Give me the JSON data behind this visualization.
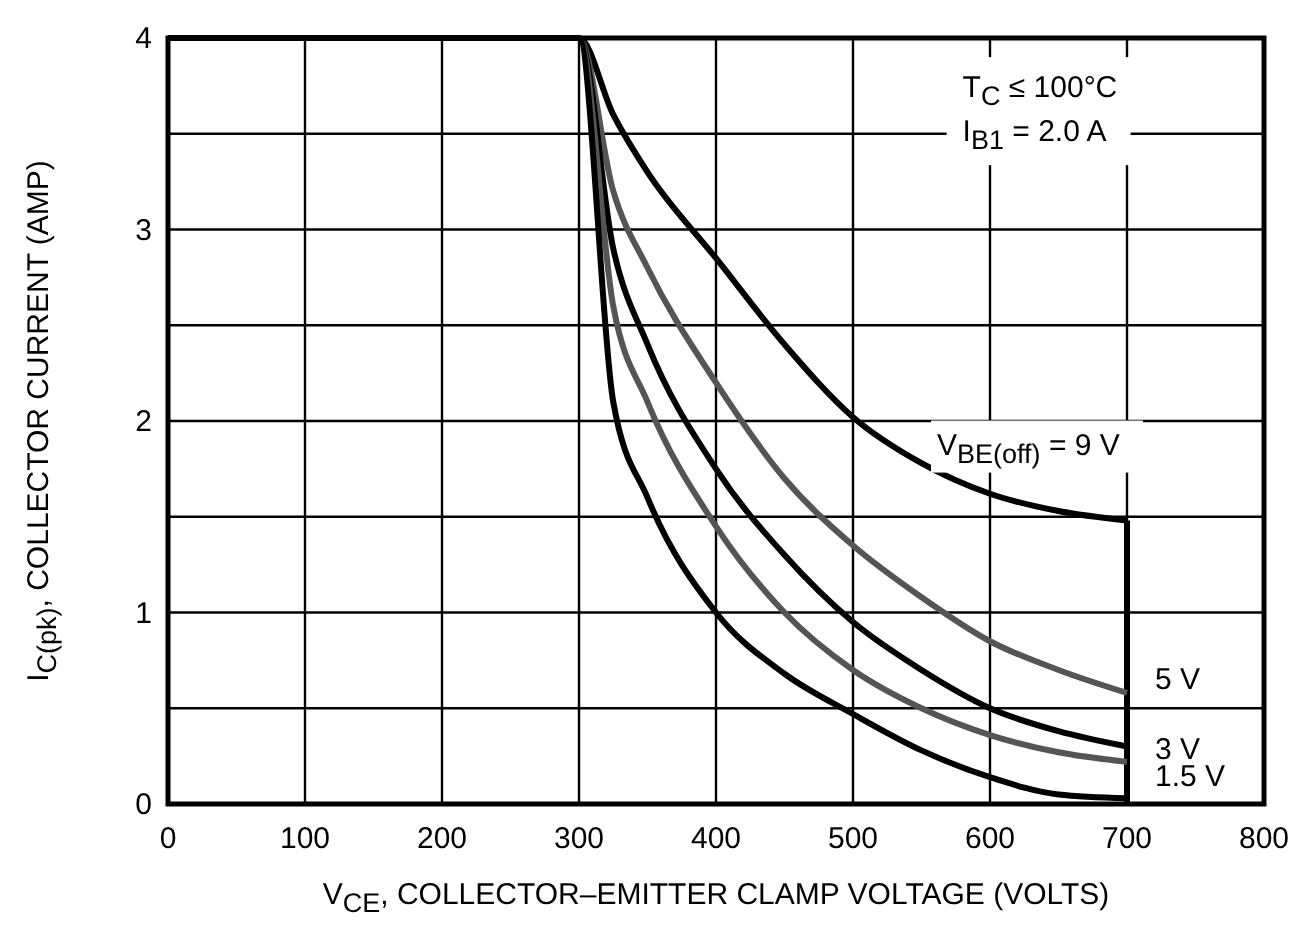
{
  "chart_data": {
    "type": "line",
    "xlabel": "V$_{CE}$, COLLECTOR–EMITTER CLAMP VOLTAGE (VOLTS)",
    "ylabel": "I$_{C(pk)}$, COLLECTOR CURRENT (AMP)",
    "annotations": [
      "T$_{C}$ ≤ 100°C",
      "I$_{B1}$ = 2.0 A"
    ],
    "x": [
      0,
      300,
      325,
      350,
      400,
      450,
      500,
      550,
      600,
      650,
      700,
      700
    ],
    "series": [
      {
        "name": "V$_{BE(off)}$ = 9 V",
        "color": "#000000",
        "values": [
          4,
          4,
          3.6,
          3.3,
          2.85,
          2.4,
          2.02,
          1.78,
          1.62,
          1.53,
          1.48,
          0
        ]
      },
      {
        "name": "5 V",
        "color": "#555555",
        "values": [
          4,
          4,
          3.2,
          2.8,
          2.2,
          1.7,
          1.35,
          1.08,
          0.85,
          0.7,
          0.58,
          null
        ]
      },
      {
        "name": "3 V",
        "color": "#000000",
        "values": [
          4,
          4,
          2.9,
          2.4,
          1.75,
          1.3,
          0.95,
          0.7,
          0.5,
          0.38,
          0.3,
          null
        ]
      },
      {
        "name": "1.5 V",
        "color": "#555555",
        "values": [
          4,
          4,
          2.6,
          2.1,
          1.45,
          1.0,
          0.7,
          0.5,
          0.36,
          0.27,
          0.22,
          null
        ]
      },
      {
        "color": "#000000",
        "values": [
          4,
          4,
          2.1,
          1.6,
          1.0,
          0.68,
          0.47,
          0.28,
          0.14,
          0.05,
          0.03,
          null
        ]
      }
    ],
    "xlim": [
      0,
      800
    ],
    "xticks": [
      0,
      100,
      200,
      300,
      400,
      500,
      600,
      700,
      800
    ],
    "ylim": [
      0,
      4
    ],
    "yticks": [
      0,
      {
        "value": 0.5,
        "label": null
      },
      1,
      {
        "value": 1.5,
        "label": null
      },
      2,
      {
        "value": 2.5,
        "label": null
      },
      3,
      {
        "value": 3.5,
        "label": null
      },
      4
    ],
    "grid": true,
    "line_style": "solid",
    "marker": "none"
  }
}
